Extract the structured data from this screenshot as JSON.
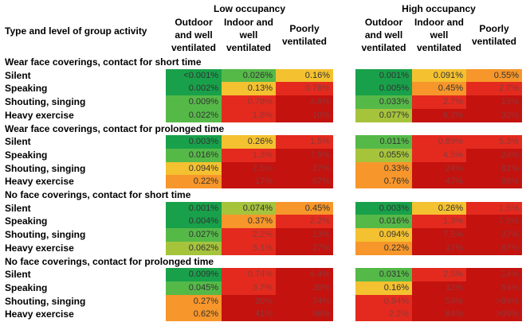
{
  "header": {
    "row_label_title": "Type and level of group activity",
    "groups": [
      {
        "title": "Low occupancy",
        "columns": [
          "Outdoor and well ventilated",
          "Indoor and well ventilated",
          "Poorly ventilated"
        ]
      },
      {
        "title": "High occupancy",
        "columns": [
          "Outdoor and well ventilated",
          "Indoor and well ventilated",
          "Poorly ventilated"
        ]
      }
    ]
  },
  "sections": [
    {
      "title": "Wear face coverings, contact for short time",
      "rows": [
        {
          "label": "Silent",
          "cells": [
            "<0.001%",
            "0.026%",
            "0.16%",
            "0.001%",
            "0.091%",
            "0.55%"
          ]
        },
        {
          "label": "Speaking",
          "cells": [
            "0.002%",
            "0.13%",
            "0.78%",
            "0.005%",
            "0.45%",
            "2.7%"
          ]
        },
        {
          "label": "Shouting, singing",
          "cells": [
            "0.009%",
            "0.78%",
            "4.6%",
            "0.033%",
            "2.7%",
            "15%"
          ]
        },
        {
          "label": "Heavy exercise",
          "cells": [
            "0.022%",
            "1.8%",
            "10%",
            "0.077%",
            "6.2%",
            "32%"
          ]
        }
      ]
    },
    {
      "title": "Wear face coverings, contact for prolonged time",
      "rows": [
        {
          "label": "Silent",
          "cells": [
            "0.003%",
            "0.26%",
            "1.5%",
            "0.011%",
            "0.89%",
            "5.3%"
          ]
        },
        {
          "label": "Speaking",
          "cells": [
            "0.016%",
            "1.3%",
            "7.5%",
            "0.055%",
            "4.5%",
            "24%"
          ]
        },
        {
          "label": "Shouting, singing",
          "cells": [
            "0.094%",
            "7.5%",
            "37%",
            "0.33%",
            "24%",
            "81%"
          ]
        },
        {
          "label": "Heavy exercise",
          "cells": [
            "0.22%",
            "17%",
            "67%",
            "0.76%",
            "47%",
            "98%"
          ]
        }
      ]
    },
    {
      "title": "No face coverings, contact for short time",
      "rows": [
        {
          "label": "Silent",
          "cells": [
            "0.001%",
            "0.074%",
            "0.45%",
            "0.003%",
            "0.26%",
            "1.5%"
          ]
        },
        {
          "label": "Speaking",
          "cells": [
            "0.004%",
            "0.37%",
            "2.2%",
            "0.016%",
            "1.3%",
            "7.5%"
          ]
        },
        {
          "label": "Shouting, singing",
          "cells": [
            "0.027%",
            "2.2%",
            "13%",
            "0.094%",
            "7.5%",
            "37%"
          ]
        },
        {
          "label": "Heavy exercise",
          "cells": [
            "0.062%",
            "5.1%",
            "27%",
            "0.22%",
            "17%",
            "67%"
          ]
        }
      ]
    },
    {
      "title": "No face coverings, contact for prolonged time",
      "rows": [
        {
          "label": "Silent",
          "cells": [
            "0.009%",
            "0.74%",
            "4.4%",
            "0.031%",
            "2.5%",
            "14%"
          ]
        },
        {
          "label": "Speaking",
          "cells": [
            "0.045%",
            "3.7%",
            "20%",
            "0.16%",
            "12%",
            "54%"
          ]
        },
        {
          "label": "Shouting, singing",
          "cells": [
            "0.27%",
            "20%",
            "74%",
            "0.94%",
            "54%",
            ">99%"
          ]
        },
        {
          "label": "Heavy exercise",
          "cells": [
            "0.62%",
            "41%",
            "96%",
            "2.2%",
            "84%",
            ">99%"
          ]
        }
      ]
    }
  ]
}
